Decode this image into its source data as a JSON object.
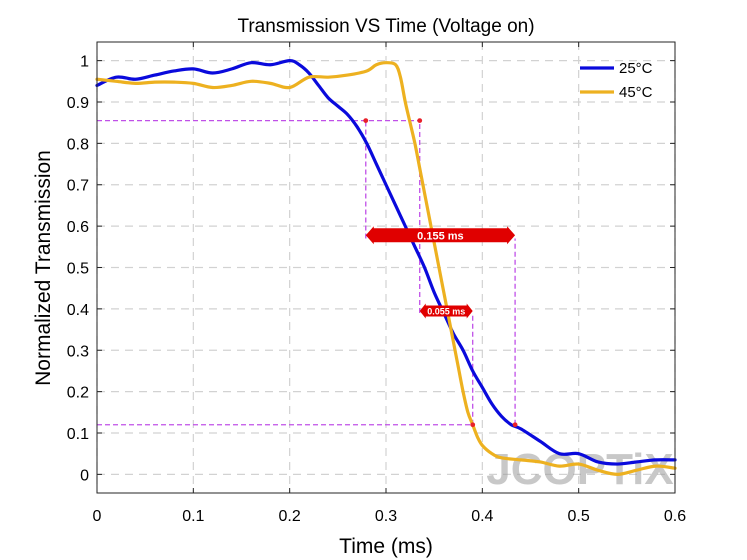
{
  "chart_data": {
    "type": "line",
    "title": "Transmission VS Time (Voltage on)",
    "xlabel": "Time (ms)",
    "ylabel": "Normalized Transmission",
    "xlim": [
      0,
      0.6
    ],
    "ylim": [
      -0.045,
      1.045
    ],
    "xticks": [
      0,
      0.1,
      0.2,
      0.3,
      0.4,
      0.5,
      0.6
    ],
    "xtick_labels": [
      "0",
      "0.1",
      "0.2",
      "0.3",
      "0.4",
      "0.5",
      "0.6"
    ],
    "yticks": [
      0,
      0.1,
      0.2,
      0.3,
      0.4,
      0.5,
      0.6,
      0.7,
      0.8,
      0.9,
      1
    ],
    "ytick_labels": [
      "0",
      "0.1",
      "0.2",
      "0.3",
      "0.4",
      "0.5",
      "0.6",
      "0.7",
      "0.8",
      "0.9",
      "1"
    ],
    "grid": true,
    "legend_position": "top-right",
    "series": [
      {
        "name": "25°C",
        "color": "#0a0adc",
        "x": [
          0,
          0.02,
          0.04,
          0.06,
          0.08,
          0.1,
          0.12,
          0.14,
          0.16,
          0.18,
          0.2,
          0.21,
          0.22,
          0.23,
          0.24,
          0.25,
          0.26,
          0.27,
          0.28,
          0.29,
          0.3,
          0.31,
          0.32,
          0.33,
          0.34,
          0.35,
          0.36,
          0.37,
          0.38,
          0.39,
          0.4,
          0.41,
          0.42,
          0.43,
          0.44,
          0.46,
          0.48,
          0.5,
          0.52,
          0.54,
          0.56,
          0.58,
          0.6
        ],
        "y": [
          0.94,
          0.96,
          0.955,
          0.965,
          0.975,
          0.98,
          0.97,
          0.98,
          0.995,
          0.99,
          1.0,
          0.99,
          0.97,
          0.94,
          0.91,
          0.89,
          0.87,
          0.84,
          0.8,
          0.75,
          0.7,
          0.65,
          0.6,
          0.55,
          0.5,
          0.44,
          0.39,
          0.34,
          0.3,
          0.25,
          0.21,
          0.17,
          0.14,
          0.12,
          0.11,
          0.08,
          0.05,
          0.05,
          0.03,
          0.025,
          0.03,
          0.035,
          0.035
        ]
      },
      {
        "name": "45°C",
        "color": "#edb120",
        "x": [
          0,
          0.02,
          0.04,
          0.06,
          0.08,
          0.1,
          0.12,
          0.14,
          0.16,
          0.18,
          0.2,
          0.22,
          0.24,
          0.26,
          0.28,
          0.29,
          0.3,
          0.31,
          0.315,
          0.32,
          0.325,
          0.33,
          0.335,
          0.34,
          0.345,
          0.35,
          0.355,
          0.36,
          0.365,
          0.37,
          0.375,
          0.38,
          0.385,
          0.39,
          0.395,
          0.4,
          0.41,
          0.42,
          0.44,
          0.46,
          0.48,
          0.5,
          0.52,
          0.54,
          0.56,
          0.58,
          0.6
        ],
        "y": [
          0.955,
          0.95,
          0.945,
          0.948,
          0.948,
          0.945,
          0.935,
          0.94,
          0.95,
          0.945,
          0.935,
          0.96,
          0.96,
          0.965,
          0.975,
          0.99,
          0.995,
          0.99,
          0.96,
          0.9,
          0.85,
          0.8,
          0.74,
          0.68,
          0.62,
          0.56,
          0.5,
          0.44,
          0.38,
          0.32,
          0.26,
          0.2,
          0.15,
          0.12,
          0.09,
          0.07,
          0.05,
          0.04,
          0.035,
          0.03,
          0.02,
          0.025,
          0.01,
          0.0,
          0.01,
          0.02,
          0.015
        ]
      }
    ],
    "reference_lines": [
      {
        "type": "horizontal",
        "y": 0.855,
        "x_from": 0,
        "x_to": 0.335
      },
      {
        "type": "horizontal",
        "y": 0.12,
        "x_from": 0,
        "x_to": 0.39
      },
      {
        "type": "vertical",
        "x": 0.279,
        "y_from": 0.57,
        "y_to": 0.855
      },
      {
        "type": "vertical",
        "x": 0.335,
        "y_from": 0.39,
        "y_to": 0.855
      },
      {
        "type": "vertical",
        "x": 0.39,
        "y_from": 0.12,
        "y_to": 0.39
      },
      {
        "type": "vertical",
        "x": 0.434,
        "y_from": 0.12,
        "y_to": 0.57
      }
    ],
    "markers": [
      {
        "x": 0.279,
        "y": 0.855
      },
      {
        "x": 0.335,
        "y": 0.855
      },
      {
        "x": 0.39,
        "y": 0.12
      },
      {
        "x": 0.434,
        "y": 0.12
      }
    ],
    "annotations": [
      {
        "text": "0.155 ms",
        "x_from": 0.279,
        "x_to": 0.434,
        "y": 0.578
      },
      {
        "text": "0.055 ms",
        "x_from": 0.335,
        "x_to": 0.39,
        "y": 0.395
      }
    ],
    "watermark": "JCOPTiX",
    "colors": {
      "reference": "#c050e8",
      "marker": "#e8202a",
      "callout": "#e00000",
      "grid": "#d2d2d2"
    }
  }
}
